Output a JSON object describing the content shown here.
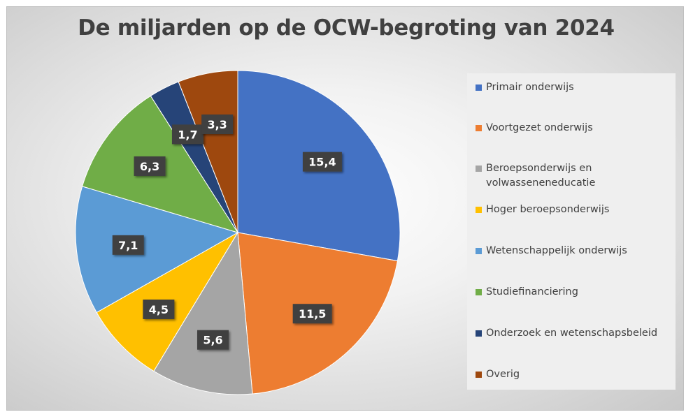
{
  "chart_data": {
    "type": "pie",
    "title": "De miljarden op de OCW-begroting van 2024",
    "categories": [
      "Primair onderwijs",
      "Voortgezet onderwijs",
      "Beroepsonderwijs en volwasseneneducatie",
      "Hoger beroepsonderwijs",
      "Wetenschappelijk onderwijs",
      "Studiefinanciering",
      "Onderzoek en wetenschapsbeleid",
      "Overig"
    ],
    "values": [
      15.4,
      11.5,
      5.6,
      4.5,
      7.1,
      6.3,
      1.7,
      3.3
    ],
    "data_labels": [
      "15,4",
      "11,5",
      "5,6",
      "4,5",
      "7,1",
      "6,3",
      "1,7",
      "3,3"
    ],
    "colors": [
      "#4472c4",
      "#ed7d31",
      "#a5a5a5",
      "#ffc000",
      "#5b9bd5",
      "#70ad47",
      "#264478",
      "#9e480e"
    ],
    "legend_position": "right"
  },
  "legend": {
    "items": [
      "Primair onderwijs",
      "Voortgezet onderwijs",
      "Beroepsonderwijs en volwasseneneducatie",
      "Hoger beroepsonderwijs",
      "Wetenschappelijk onderwijs",
      "Studiefinanciering",
      "Onderzoek en wetenschapsbeleid",
      "Overig"
    ]
  }
}
